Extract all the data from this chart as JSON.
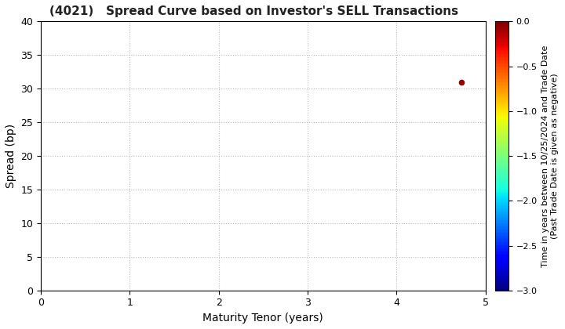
{
  "title": "(4021)   Spread Curve based on Investor's SELL Transactions",
  "xlabel": "Maturity Tenor (years)",
  "ylabel": "Spread (bp)",
  "colorbar_label_line1": "Time in years between 10/25/2024 and Trade Date",
  "colorbar_label_line2": "(Past Trade Date is given as negative)",
  "xlim": [
    0,
    5
  ],
  "ylim": [
    0,
    40
  ],
  "xticks": [
    0,
    1,
    2,
    3,
    4,
    5
  ],
  "yticks": [
    0,
    5,
    10,
    15,
    20,
    25,
    30,
    35,
    40
  ],
  "cmap_min": -3.0,
  "cmap_max": 0.0,
  "cbar_ticks": [
    0.0,
    -0.5,
    -1.0,
    -1.5,
    -2.0,
    -2.5,
    -3.0
  ],
  "scatter_x": [
    4.73
  ],
  "scatter_y": [
    31
  ],
  "scatter_c": [
    -0.05
  ],
  "scatter_size": 20,
  "background_color": "#ffffff",
  "grid_color": "#bbbbbb",
  "grid_linestyle": ":",
  "title_fontsize": 11,
  "axis_fontsize": 10,
  "tick_fontsize": 9,
  "cbar_fontsize": 8
}
